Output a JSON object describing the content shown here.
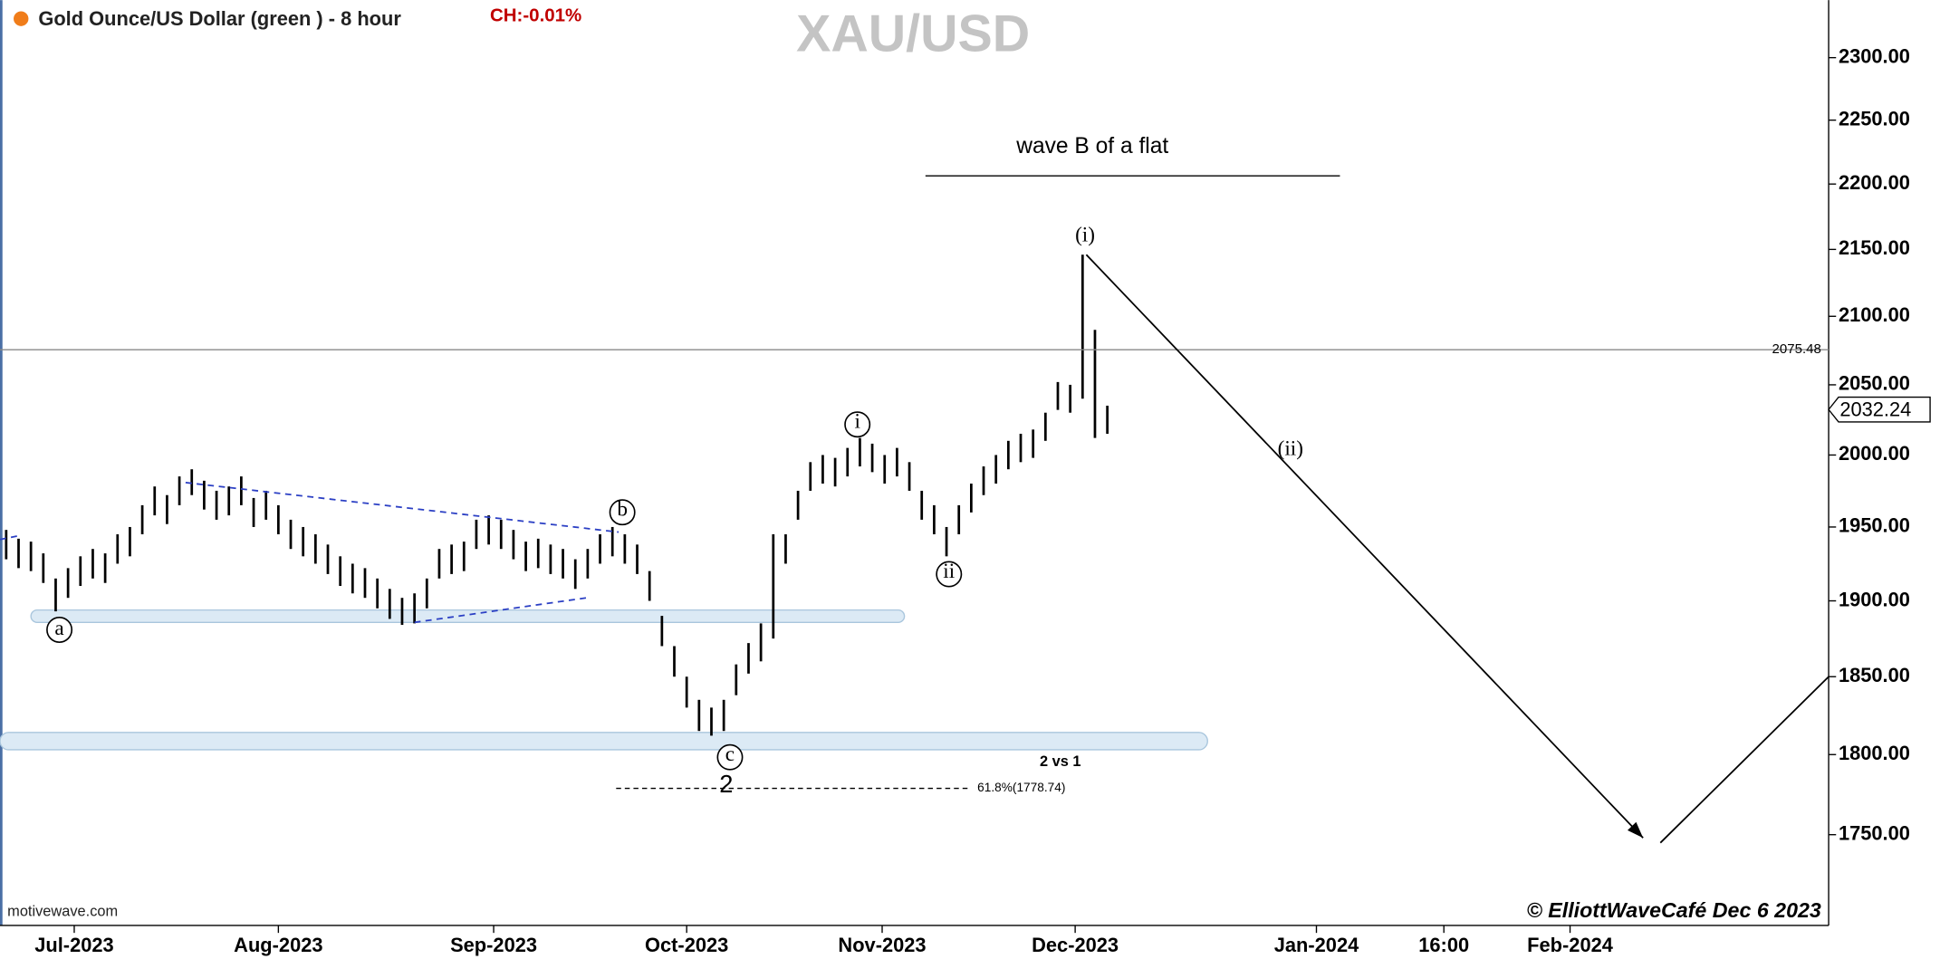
{
  "chart_data": {
    "type": "ohlc",
    "title": "Gold Ounce/US Dollar (green ) - 8 hour",
    "change_label": "CH:-0.01%",
    "watermark": "XAU/USD",
    "log_scale": true,
    "color": "#000000",
    "ylim": [
      1695,
      2347
    ],
    "yticks": [
      {
        "value": 1750,
        "label": "1750.00"
      },
      {
        "value": 1800,
        "label": "1800.00"
      },
      {
        "value": 1850,
        "label": "1850.00"
      },
      {
        "value": 1900,
        "label": "1900.00"
      },
      {
        "value": 1950,
        "label": "1950.00"
      },
      {
        "value": 2000,
        "label": "2000.00"
      },
      {
        "value": 2050,
        "label": "2050.00"
      },
      {
        "value": 2100,
        "label": "2100.00"
      },
      {
        "value": 2150,
        "label": "2150.00"
      },
      {
        "value": 2200,
        "label": "2200.00"
      },
      {
        "value": 2250,
        "label": "2250.00"
      },
      {
        "value": 2300,
        "label": "2300.00"
      }
    ],
    "xlim": [
      -0.5,
      147.3
    ],
    "xticks": [
      {
        "value": 5.5,
        "label": "Jul-2023"
      },
      {
        "value": 22,
        "label": "Aug-2023"
      },
      {
        "value": 39.4,
        "label": "Sep-2023"
      },
      {
        "value": 55,
        "label": "Oct-2023"
      },
      {
        "value": 70.8,
        "label": "Nov-2023"
      },
      {
        "value": 86.4,
        "label": "Dec-2023"
      },
      {
        "value": 105.9,
        "label": "Jan-2024"
      },
      {
        "value": 116.2,
        "label": "16:00"
      },
      {
        "value": 126.4,
        "label": "Feb-2024"
      }
    ],
    "high": [
      1948,
      1942,
      1940,
      1932,
      1915,
      1922,
      1930,
      1935,
      1932,
      1945,
      1950,
      1965,
      1978,
      1972,
      1985,
      1990,
      1982,
      1975,
      1978,
      1985,
      1970,
      1975,
      1965,
      1955,
      1950,
      1945,
      1938,
      1930,
      1925,
      1922,
      1915,
      1908,
      1902,
      1905,
      1915,
      1935,
      1938,
      1940,
      1955,
      1958,
      1955,
      1948,
      1940,
      1942,
      1938,
      1935,
      1928,
      1935,
      1945,
      1950,
      1945,
      1938,
      1920,
      1890,
      1870,
      1850,
      1835,
      1830,
      1835,
      1858,
      1872,
      1885,
      1945,
      1945,
      1975,
      1995,
      2000,
      1998,
      2005,
      2012,
      2008,
      2000,
      2005,
      1995,
      1975,
      1965,
      1950,
      1965,
      1980,
      1992,
      2000,
      2010,
      2015,
      2018,
      2030,
      2052,
      2050,
      2146,
      2090,
      2035
    ],
    "low": [
      1928,
      1922,
      1920,
      1912,
      1893,
      1902,
      1910,
      1915,
      1912,
      1925,
      1930,
      1945,
      1958,
      1952,
      1965,
      1972,
      1962,
      1955,
      1958,
      1965,
      1950,
      1955,
      1945,
      1935,
      1930,
      1925,
      1918,
      1910,
      1905,
      1902,
      1895,
      1888,
      1884,
      1885,
      1895,
      1915,
      1918,
      1920,
      1935,
      1938,
      1935,
      1928,
      1920,
      1922,
      1918,
      1915,
      1908,
      1915,
      1925,
      1930,
      1925,
      1918,
      1900,
      1870,
      1850,
      1830,
      1815,
      1812,
      1815,
      1838,
      1852,
      1860,
      1875,
      1925,
      1955,
      1975,
      1980,
      1978,
      1985,
      1992,
      1988,
      1980,
      1985,
      1975,
      1955,
      1945,
      1930,
      1945,
      1960,
      1972,
      1980,
      1990,
      1995,
      1998,
      2010,
      2032,
      2030,
      2040,
      2012,
      2015
    ],
    "reference_line": 2075.48,
    "last_price": 2032.24,
    "fib_line": {
      "value": 1778.74,
      "label": "61.8%(1778.74)"
    },
    "projection_x": [
      87.3,
      132.3,
      null,
      133.7,
      147.3
    ],
    "projection_y": [
      2146,
      1748,
      null,
      1745,
      1850
    ],
    "annotations": [
      "a",
      "b",
      "c",
      "2",
      "i",
      "ii",
      "(i)",
      "(ii)",
      "wave B of a flat",
      "2 vs 1"
    ],
    "source": "motivewave.com",
    "credit": "© ElliottWaveCafé Dec 6 2023"
  }
}
